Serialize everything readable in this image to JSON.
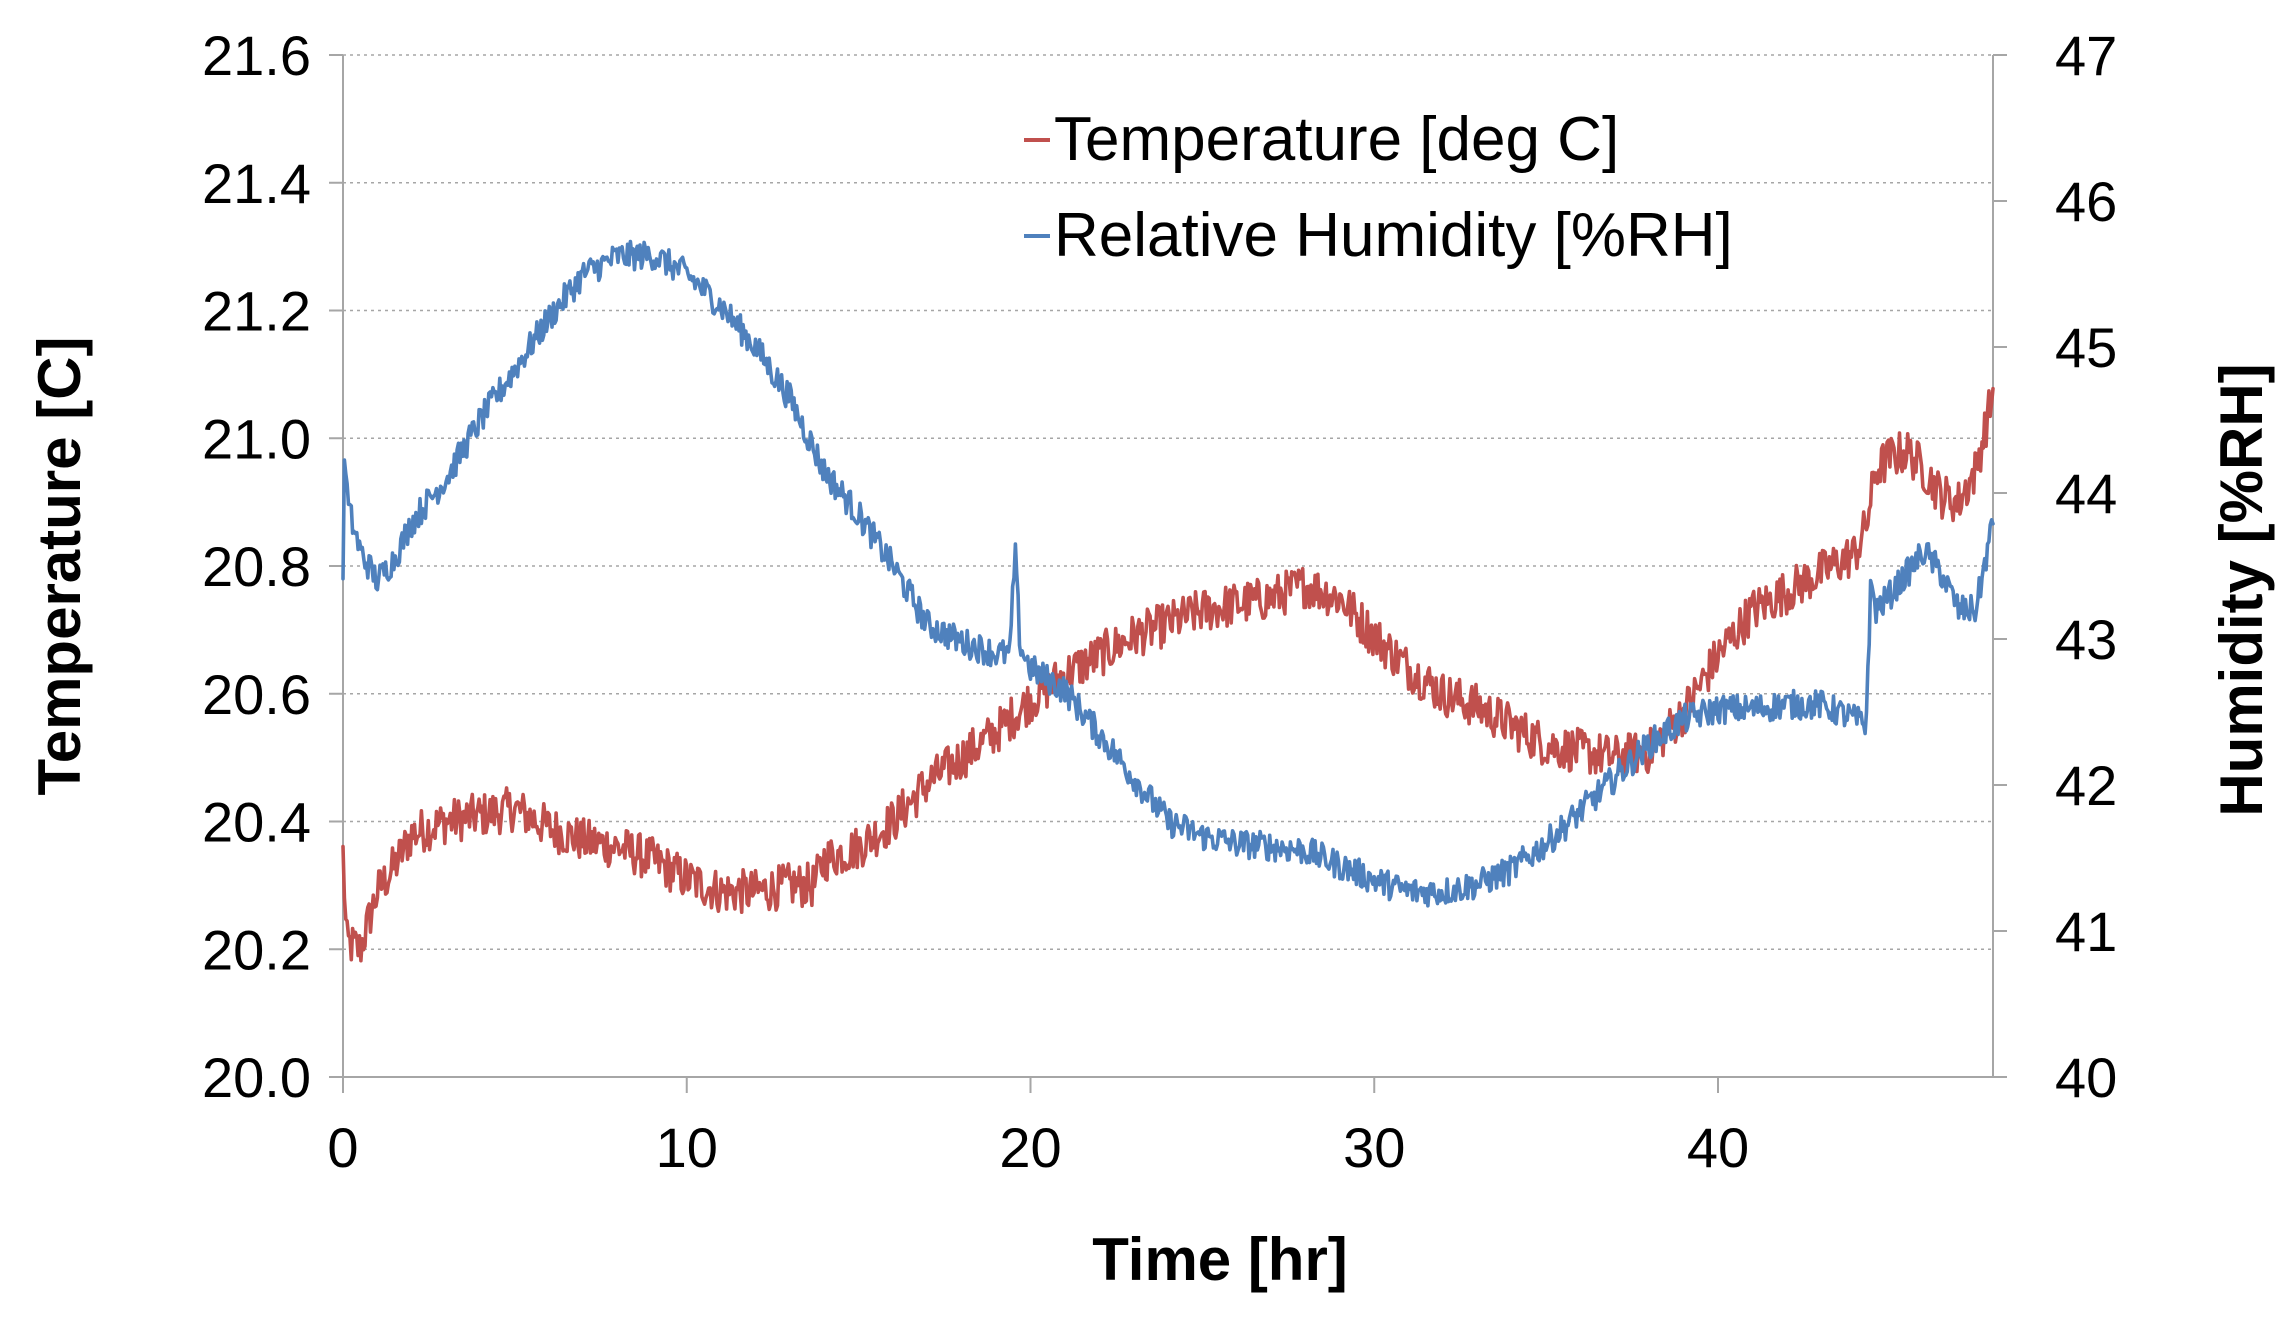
{
  "chart_data": {
    "type": "line",
    "title": "",
    "xlabel": "Time [hr]",
    "ylabel_left": "Temperature [C]",
    "ylabel_right": "Humidity [%RH]",
    "xlim": [
      0,
      48
    ],
    "ylim_left": [
      20.0,
      21.6
    ],
    "ylim_right": [
      40,
      47
    ],
    "x_ticks": [
      0,
      10,
      20,
      30,
      40
    ],
    "x_tick_labels": [
      "0",
      "10",
      "20",
      "30",
      "40"
    ],
    "y_left_ticks": [
      20.0,
      20.2,
      20.4,
      20.6,
      20.8,
      21.0,
      21.2,
      21.4,
      21.6
    ],
    "y_left_tick_labels": [
      "20.0",
      "20.2",
      "20.4",
      "20.6",
      "20.8",
      "21.0",
      "21.2",
      "21.4",
      "21.6"
    ],
    "y_right_ticks": [
      40,
      41,
      42,
      43,
      44,
      45,
      46,
      47
    ],
    "y_right_tick_labels": [
      "40",
      "41",
      "42",
      "43",
      "44",
      "45",
      "46",
      "47"
    ],
    "grid": true,
    "legend_position": "top-center",
    "series": [
      {
        "name": "Temperature [deg C]",
        "axis": "left",
        "color": "#c0504d",
        "noise": 0.035,
        "x": [
          0,
          0.1,
          0.5,
          1,
          1.5,
          2,
          3,
          4,
          5,
          6,
          7,
          8,
          9,
          10,
          11,
          12,
          13,
          13.7,
          14,
          15,
          16,
          17,
          18,
          19,
          20,
          21,
          22,
          23,
          24,
          25,
          26,
          27,
          28,
          29,
          30,
          31,
          32,
          33,
          34,
          35,
          36,
          37,
          38,
          39,
          40,
          41,
          42,
          43,
          44,
          44.3,
          44.6,
          45,
          45.5,
          46,
          46.5,
          47,
          47.5,
          48
        ],
        "values": [
          20.35,
          20.21,
          20.2,
          20.29,
          20.33,
          20.38,
          20.4,
          20.41,
          20.42,
          20.39,
          20.37,
          20.36,
          20.34,
          20.31,
          20.29,
          20.29,
          20.3,
          20.3,
          20.34,
          20.36,
          20.4,
          20.46,
          20.5,
          20.54,
          20.59,
          20.63,
          20.66,
          20.69,
          20.71,
          20.73,
          20.74,
          20.75,
          20.77,
          20.75,
          20.69,
          20.64,
          20.6,
          20.58,
          20.55,
          20.52,
          20.51,
          20.5,
          20.51,
          20.57,
          20.66,
          20.73,
          20.76,
          20.79,
          20.82,
          20.86,
          20.95,
          20.97,
          20.98,
          20.95,
          20.91,
          20.9,
          20.95,
          21.07
        ]
      },
      {
        "name": "Relative Humidity [%RH]",
        "axis": "right",
        "color": "#4f81bd",
        "noise": 0.1,
        "x": [
          0,
          0.05,
          0.15,
          0.5,
          1,
          1.5,
          2,
          3,
          4,
          5,
          6,
          7,
          8,
          9,
          10,
          11,
          12,
          13,
          13.5,
          14,
          15,
          16,
          17,
          18,
          19,
          19.4,
          19.55,
          19.7,
          20,
          21,
          22,
          23,
          24,
          25,
          26,
          27,
          28,
          29,
          30,
          31,
          32,
          33,
          34,
          35,
          36,
          37,
          38,
          39,
          40,
          41,
          42,
          43,
          44,
          44.3,
          44.45,
          44.6,
          45,
          45.5,
          46,
          46.5,
          47,
          47.5,
          48
        ],
        "values": [
          43.5,
          44.3,
          43.9,
          43.6,
          43.4,
          43.55,
          43.8,
          44.1,
          44.5,
          44.85,
          45.2,
          45.5,
          45.62,
          45.63,
          45.5,
          45.28,
          45.0,
          44.65,
          44.4,
          44.15,
          43.85,
          43.5,
          43.1,
          42.98,
          42.9,
          42.9,
          43.6,
          42.95,
          42.8,
          42.65,
          42.35,
          42.05,
          41.75,
          41.65,
          41.6,
          41.58,
          41.55,
          41.45,
          41.35,
          41.27,
          41.27,
          41.32,
          41.42,
          41.6,
          41.82,
          42.05,
          42.28,
          42.45,
          42.52,
          42.52,
          42.55,
          42.55,
          42.45,
          42.4,
          43.38,
          43.2,
          43.3,
          43.45,
          43.6,
          43.45,
          43.2,
          43.2,
          43.8
        ]
      }
    ]
  }
}
